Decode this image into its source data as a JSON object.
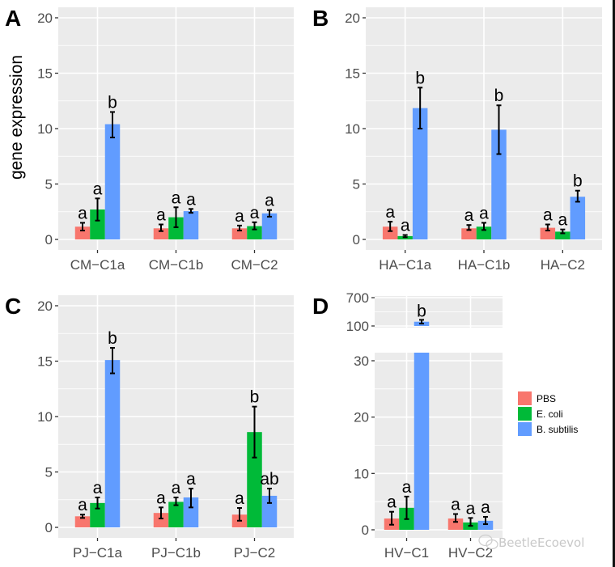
{
  "chart_data": [
    {
      "type": "bar",
      "panel": "A",
      "ylabel": "gene expression",
      "ylim": [
        0,
        20
      ],
      "yticks": [
        0,
        5,
        10,
        15,
        20
      ],
      "categories": [
        "CM−C1a",
        "CM−C1b",
        "CM−C2"
      ],
      "series": [
        {
          "name": "PBS",
          "values": [
            1.15,
            1.0,
            1.0
          ],
          "err_low": [
            0.8,
            0.75,
            0.8
          ],
          "err_high": [
            1.5,
            1.35,
            1.25
          ],
          "labels": [
            "a",
            "a",
            "a"
          ]
        },
        {
          "name": "E. coli",
          "values": [
            2.7,
            2.0,
            1.2
          ],
          "err_low": [
            1.7,
            1.1,
            0.9
          ],
          "err_high": [
            3.7,
            2.9,
            1.55
          ],
          "labels": [
            "a",
            "a",
            "a"
          ]
        },
        {
          "name": "B. subtilis",
          "values": [
            10.4,
            2.55,
            2.35
          ],
          "err_low": [
            9.2,
            2.4,
            2.05
          ],
          "err_high": [
            11.5,
            2.75,
            2.65
          ],
          "labels": [
            "b",
            "a",
            "a"
          ]
        }
      ]
    },
    {
      "type": "bar",
      "panel": "B",
      "ylabel": "",
      "ylim": [
        0,
        20
      ],
      "yticks": [
        0,
        5,
        10,
        15,
        20
      ],
      "categories": [
        "HA−C1a",
        "HA−C1b",
        "HA−C2"
      ],
      "series": [
        {
          "name": "PBS",
          "values": [
            1.15,
            1.0,
            1.05
          ],
          "err_low": [
            0.75,
            0.85,
            0.8
          ],
          "err_high": [
            1.6,
            1.3,
            1.35
          ],
          "labels": [
            "a",
            "a",
            "a"
          ]
        },
        {
          "name": "E. coli",
          "values": [
            0.3,
            1.15,
            0.7
          ],
          "err_low": [
            0.2,
            0.85,
            0.55
          ],
          "err_high": [
            0.4,
            1.5,
            0.9
          ],
          "labels": [
            "a",
            "a",
            "a"
          ]
        },
        {
          "name": "B. subtilis",
          "values": [
            11.85,
            9.9,
            3.85
          ],
          "err_low": [
            10.0,
            7.7,
            3.4
          ],
          "err_high": [
            13.7,
            12.1,
            4.4
          ],
          "labels": [
            "b",
            "b",
            "b"
          ]
        }
      ]
    },
    {
      "type": "bar",
      "panel": "C",
      "ylabel": "",
      "ylim": [
        0,
        20
      ],
      "yticks": [
        0,
        5,
        10,
        15,
        20
      ],
      "categories": [
        "PJ−C1a",
        "PJ−C1b",
        "PJ−C2"
      ],
      "series": [
        {
          "name": "PBS",
          "values": [
            1.0,
            1.3,
            1.15
          ],
          "err_low": [
            0.85,
            0.8,
            0.6
          ],
          "err_high": [
            1.15,
            1.8,
            1.75
          ],
          "labels": [
            "a",
            "a",
            "a"
          ]
        },
        {
          "name": "E. coli",
          "values": [
            2.2,
            2.3,
            8.6
          ],
          "err_low": [
            1.7,
            2.0,
            6.3
          ],
          "err_high": [
            2.7,
            2.7,
            10.9
          ],
          "labels": [
            "a",
            "a",
            "b"
          ]
        },
        {
          "name": "B. subtilis",
          "values": [
            15.1,
            2.7,
            2.85
          ],
          "err_low": [
            13.9,
            1.8,
            2.2
          ],
          "err_high": [
            16.2,
            3.5,
            3.5
          ],
          "labels": [
            "b",
            "a",
            "ab"
          ]
        }
      ]
    },
    {
      "type": "bar",
      "panel": "D",
      "ylabel": "",
      "axis_break": true,
      "ylim_lower": [
        0,
        30
      ],
      "yticks_lower": [
        0,
        10,
        20,
        30
      ],
      "ylim_upper": [
        100,
        700
      ],
      "yticks_upper": [
        100,
        700
      ],
      "categories": [
        "HV−C1",
        "HV−C2"
      ],
      "series": [
        {
          "name": "PBS",
          "values": [
            2.0,
            2.0
          ],
          "err_low": [
            0.9,
            1.4
          ],
          "err_high": [
            3.2,
            2.8
          ],
          "labels": [
            "a",
            "a"
          ]
        },
        {
          "name": "E. coli",
          "values": [
            3.9,
            1.3
          ],
          "err_low": [
            1.9,
            0.7
          ],
          "err_high": [
            5.9,
            2.1
          ],
          "labels": [
            "a",
            "a"
          ]
        },
        {
          "name": "B. subtilis",
          "values": [
            190,
            1.6
          ],
          "err_low": [
            150,
            1.0
          ],
          "err_high": [
            230,
            2.3
          ],
          "labels": [
            "b",
            "a"
          ]
        }
      ]
    }
  ],
  "legend": {
    "placement": "right",
    "items": [
      {
        "label": "PBS",
        "color": "#F8766D"
      },
      {
        "label": "E. coli",
        "color": "#00BA38"
      },
      {
        "label": "B. subtilis",
        "color": "#619CFF"
      }
    ]
  },
  "colors": {
    "panel_bg": "#EBEBEB",
    "grid": "#FFFFFF",
    "error_bar": "#000000"
  },
  "watermark": "BeetleEcoevol"
}
